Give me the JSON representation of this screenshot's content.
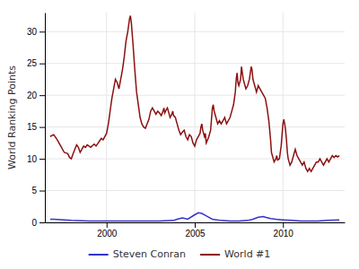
{
  "chart_data": {
    "type": "line",
    "ylabel": "World Ranking Points",
    "xlim": [
      1996.5,
      2013.5
    ],
    "xticks": [
      2000,
      2005,
      2010
    ],
    "ylim": [
      0,
      33
    ],
    "yticks": [
      0,
      5,
      10,
      15,
      20,
      25,
      30
    ],
    "grid": true,
    "legend": "bottom",
    "series": [
      {
        "name": "Steven Conran",
        "color": "#3333cc",
        "x": [
          1996.8,
          1997.0,
          1998.0,
          1999.0,
          2000.0,
          2001.0,
          2002.0,
          2003.0,
          2003.8,
          2004.0,
          2004.3,
          2004.6,
          2005.0,
          2005.2,
          2005.4,
          2005.6,
          2005.8,
          2006.0,
          2006.5,
          2007.0,
          2007.5,
          2008.0,
          2008.3,
          2008.6,
          2008.9,
          2009.0,
          2009.3,
          2009.6,
          2010.0,
          2010.5,
          2011.0,
          2012.0,
          2012.5,
          2013.2
        ],
        "values": [
          0.5,
          0.5,
          0.3,
          0.2,
          0.2,
          0.2,
          0.2,
          0.2,
          0.3,
          0.5,
          0.7,
          0.5,
          1.2,
          1.5,
          1.4,
          1.1,
          0.8,
          0.5,
          0.3,
          0.2,
          0.2,
          0.3,
          0.5,
          0.8,
          0.9,
          0.8,
          0.6,
          0.5,
          0.4,
          0.3,
          0.2,
          0.2,
          0.3,
          0.4
        ]
      },
      {
        "name": "World #1",
        "color": "#8b1111",
        "x": [
          1996.8,
          1997.0,
          1997.2,
          1997.4,
          1997.6,
          1997.8,
          1997.9,
          1998.0,
          1998.1,
          1998.2,
          1998.3,
          1998.4,
          1998.5,
          1998.6,
          1998.7,
          1998.8,
          1998.9,
          1999.0,
          1999.1,
          1999.2,
          1999.3,
          1999.4,
          1999.5,
          1999.6,
          1999.7,
          1999.8,
          1999.9,
          2000.0,
          2000.1,
          2000.2,
          2000.3,
          2000.4,
          2000.5,
          2000.6,
          2000.7,
          2000.8,
          2000.9,
          2001.0,
          2001.1,
          2001.2,
          2001.3,
          2001.35,
          2001.4,
          2001.5,
          2001.6,
          2001.7,
          2001.8,
          2001.9,
          2002.0,
          2002.1,
          2002.2,
          2002.3,
          2002.4,
          2002.5,
          2002.6,
          2002.7,
          2002.8,
          2002.9,
          2003.0,
          2003.1,
          2003.2,
          2003.25,
          2003.3,
          2003.4,
          2003.45,
          2003.5,
          2003.6,
          2003.7,
          2003.75,
          2003.8,
          2003.9,
          2004.0,
          2004.1,
          2004.2,
          2004.3,
          2004.4,
          2004.5,
          2004.6,
          2004.7,
          2004.8,
          2004.9,
          2005.0,
          2005.05,
          2005.1,
          2005.2,
          2005.3,
          2005.35,
          2005.4,
          2005.45,
          2005.5,
          2005.55,
          2005.6,
          2005.65,
          2005.7,
          2005.8,
          2005.9,
          2006.0,
          2006.05,
          2006.1,
          2006.2,
          2006.3,
          2006.4,
          2006.5,
          2006.6,
          2006.7,
          2006.8,
          2006.9,
          2007.0,
          2007.1,
          2007.2,
          2007.3,
          2007.35,
          2007.4,
          2007.45,
          2007.5,
          2007.6,
          2007.65,
          2007.7,
          2007.75,
          2007.8,
          2007.9,
          2008.0,
          2008.1,
          2008.2,
          2008.25,
          2008.3,
          2008.4,
          2008.45,
          2008.5,
          2008.6,
          2008.7,
          2008.8,
          2008.9,
          2009.0,
          2009.1,
          2009.2,
          2009.3,
          2009.35,
          2009.4,
          2009.5,
          2009.6,
          2009.65,
          2009.7,
          2009.8,
          2009.9,
          2010.0,
          2010.05,
          2010.1,
          2010.15,
          2010.2,
          2010.25,
          2010.3,
          2010.35,
          2010.4,
          2010.5,
          2010.6,
          2010.7,
          2010.8,
          2010.9,
          2011.0,
          2011.1,
          2011.2,
          2011.3,
          2011.4,
          2011.5,
          2011.6,
          2011.7,
          2011.8,
          2011.9,
          2012.0,
          2012.1,
          2012.2,
          2012.3,
          2012.4,
          2012.5,
          2012.6,
          2012.7,
          2012.8,
          2012.9,
          2013.0,
          2013.1,
          2013.2
        ],
        "values": [
          13.5,
          13.8,
          13.0,
          12.0,
          11.0,
          10.8,
          10.2,
          10.0,
          10.8,
          11.5,
          12.2,
          11.8,
          11.0,
          11.5,
          12.0,
          11.8,
          12.2,
          12.0,
          11.8,
          12.1,
          12.3,
          12.0,
          12.4,
          12.8,
          13.2,
          13.0,
          13.5,
          14.0,
          15.5,
          17.5,
          19.5,
          21.0,
          22.5,
          22.0,
          21.0,
          22.5,
          24.0,
          26.0,
          28.5,
          30.0,
          32.0,
          32.5,
          31.5,
          28.0,
          24.0,
          20.5,
          18.5,
          16.5,
          15.5,
          15.0,
          14.8,
          15.5,
          16.2,
          17.5,
          18.0,
          17.5,
          17.0,
          17.5,
          17.2,
          16.8,
          17.5,
          18.0,
          17.2,
          17.8,
          18.0,
          17.5,
          16.5,
          17.0,
          17.5,
          16.8,
          16.5,
          15.5,
          14.5,
          13.8,
          14.2,
          14.5,
          13.5,
          13.0,
          13.8,
          13.5,
          12.5,
          12.0,
          12.5,
          13.0,
          13.5,
          14.0,
          15.0,
          15.5,
          14.5,
          14.0,
          13.5,
          14.0,
          12.5,
          12.8,
          13.5,
          14.5,
          18.0,
          18.5,
          17.5,
          16.5,
          15.5,
          16.0,
          15.5,
          16.0,
          16.5,
          15.5,
          16.0,
          16.5,
          17.5,
          18.5,
          20.5,
          22.5,
          23.5,
          22.0,
          21.5,
          22.5,
          24.5,
          23.5,
          22.5,
          22.0,
          21.0,
          21.5,
          22.5,
          24.5,
          24.0,
          22.5,
          21.5,
          21.0,
          20.5,
          21.5,
          21.0,
          20.5,
          20.0,
          19.5,
          18.0,
          16.0,
          13.0,
          11.0,
          10.5,
          9.5,
          10.0,
          10.5,
          9.8,
          10.0,
          12.0,
          15.5,
          16.2,
          15.5,
          14.5,
          13.0,
          11.0,
          10.0,
          9.5,
          9.0,
          9.5,
          10.5,
          11.5,
          10.5,
          10.0,
          9.5,
          9.0,
          9.5,
          8.5,
          8.0,
          8.5,
          8.0,
          8.5,
          9.0,
          9.5,
          9.5,
          10.0,
          9.5,
          9.0,
          9.5,
          10.0,
          9.5,
          10.0,
          10.5,
          10.2,
          10.5,
          10.3,
          10.5
        ]
      }
    ]
  }
}
